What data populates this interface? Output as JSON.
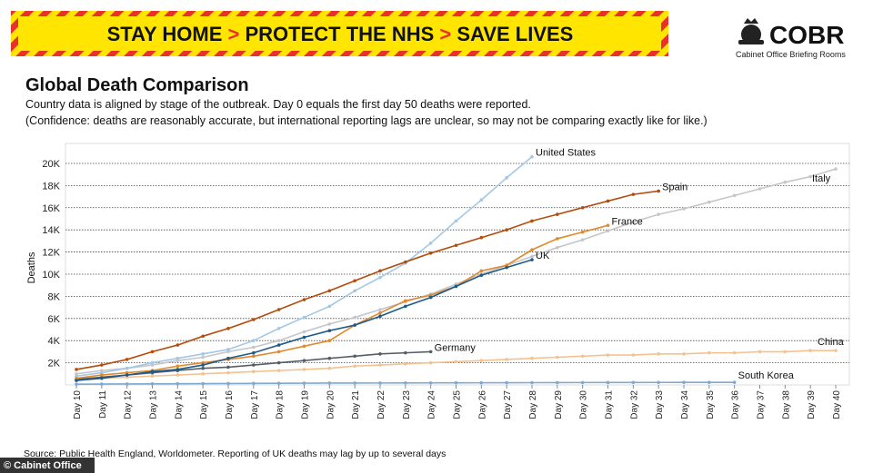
{
  "banner": {
    "parts": [
      "STAY HOME",
      "PROTECT THE NHS",
      "SAVE LIVES"
    ],
    "separator": ">"
  },
  "logo": {
    "name": "COBR",
    "subtitle": "Cabinet Office Briefing Rooms"
  },
  "source": "Source: Public Health England, Worldometer. Reporting of UK deaths may lag by up to several days",
  "credit": "© Cabinet Office",
  "chart_data": {
    "type": "line",
    "title": "Global Death Comparison",
    "subtitle": [
      "Country data is aligned by stage of the outbreak. Day 0 equals the first day 50 deaths were reported.",
      "(Confidence: deaths are reasonably accurate, but international reporting lags are unclear, so may not be comparing exactly like for like.)"
    ],
    "y_label": "Deaths",
    "categories": [
      "Day 10",
      "Day 11",
      "Day 12",
      "Day 13",
      "Day 14",
      "Day 15",
      "Day 16",
      "Day 17",
      "Day 18",
      "Day 19",
      "Day 20",
      "Day 21",
      "Day 22",
      "Day 23",
      "Day 24",
      "Day 25",
      "Day 26",
      "Day 27",
      "Day 28",
      "Day 29",
      "Day 30",
      "Day 31",
      "Day 32",
      "Day 33",
      "Day 34",
      "Day 35",
      "Day 36",
      "Day 37",
      "Day 38",
      "Day 39",
      "Day 40"
    ],
    "ylim": [
      0,
      21800
    ],
    "yticks": [
      {
        "value": 2000,
        "label": "2K"
      },
      {
        "value": 4000,
        "label": "4K"
      },
      {
        "value": 6000,
        "label": "6K"
      },
      {
        "value": 8000,
        "label": "8K"
      },
      {
        "value": 10000,
        "label": "10K"
      },
      {
        "value": 12000,
        "label": "12K"
      },
      {
        "value": 14000,
        "label": "14K"
      },
      {
        "value": 16000,
        "label": "16K"
      },
      {
        "value": 18000,
        "label": "18K"
      },
      {
        "value": 20000,
        "label": "20K"
      }
    ],
    "grid": true,
    "series": [
      {
        "name": "Italy",
        "color": "#c5c6cc",
        "values": [
          1000,
          1300,
          1500,
          1800,
          2200,
          2500,
          3000,
          3400,
          4000,
          4800,
          5500,
          6100,
          6800,
          7500,
          8200,
          9100,
          10000,
          10800,
          11600,
          12400,
          13100,
          13900,
          14700,
          15400,
          15900,
          16500,
          17100,
          17700,
          18300,
          18800,
          19500
        ]
      },
      {
        "name": "China",
        "color": "#f3c290",
        "values": [
          500,
          600,
          700,
          800,
          900,
          1000,
          1100,
          1200,
          1300,
          1400,
          1500,
          1700,
          1800,
          1900,
          2000,
          2100,
          2200,
          2300,
          2400,
          2500,
          2600,
          2700,
          2700,
          2800,
          2800,
          2900,
          2900,
          3000,
          3000,
          3100,
          3100
        ]
      },
      {
        "name": "South Korea",
        "color": "#7fa9cf",
        "values": [
          70,
          80,
          90,
          100,
          110,
          120,
          130,
          140,
          150,
          160,
          165,
          170,
          175,
          180,
          185,
          190,
          195,
          200,
          205,
          210,
          215,
          220,
          222,
          225,
          228,
          230,
          232,
          null,
          null,
          null,
          null
        ]
      },
      {
        "name": "United States",
        "color": "#a4c8e4",
        "values": [
          800,
          1100,
          1500,
          2000,
          2400,
          2800,
          3200,
          4000,
          5100,
          6100,
          7100,
          8500,
          9700,
          11000,
          12800,
          14800,
          16700,
          18700,
          20600,
          null,
          null,
          null,
          null,
          null,
          null,
          null,
          null,
          null,
          null,
          null,
          null
        ]
      },
      {
        "name": "Germany",
        "color": "#555e68",
        "values": [
          500,
          700,
          900,
          1100,
          1300,
          1500,
          1600,
          1800,
          2000,
          2200,
          2400,
          2600,
          2800,
          2900,
          3000,
          null,
          null,
          null,
          null,
          null,
          null,
          null,
          null,
          null,
          null,
          null,
          null,
          null,
          null,
          null,
          null
        ]
      },
      {
        "name": "France",
        "color": "#e0892c",
        "values": [
          600,
          900,
          1100,
          1300,
          1700,
          2000,
          2300,
          2600,
          3000,
          3500,
          4000,
          5400,
          6500,
          7600,
          8100,
          8900,
          10300,
          10800,
          12200,
          13200,
          13800,
          14400,
          null,
          null,
          null,
          null,
          null,
          null,
          null,
          null,
          null
        ]
      },
      {
        "name": "UK",
        "color": "#1d5a8a",
        "values": [
          400,
          600,
          900,
          1200,
          1400,
          1800,
          2400,
          2900,
          3600,
          4300,
          4900,
          5400,
          6200,
          7100,
          7900,
          8900,
          9900,
          10600,
          11300,
          null,
          null,
          null,
          null,
          null,
          null,
          null,
          null,
          null,
          null,
          null,
          null
        ]
      },
      {
        "name": "Spain",
        "color": "#b44c0e",
        "values": [
          1400,
          1800,
          2300,
          3000,
          3600,
          4400,
          5100,
          5900,
          6800,
          7700,
          8500,
          9400,
          10300,
          11100,
          11900,
          12600,
          13300,
          14000,
          14800,
          15400,
          16000,
          16600,
          17200,
          17500,
          null,
          null,
          null,
          null,
          null,
          null,
          null
        ]
      }
    ]
  }
}
